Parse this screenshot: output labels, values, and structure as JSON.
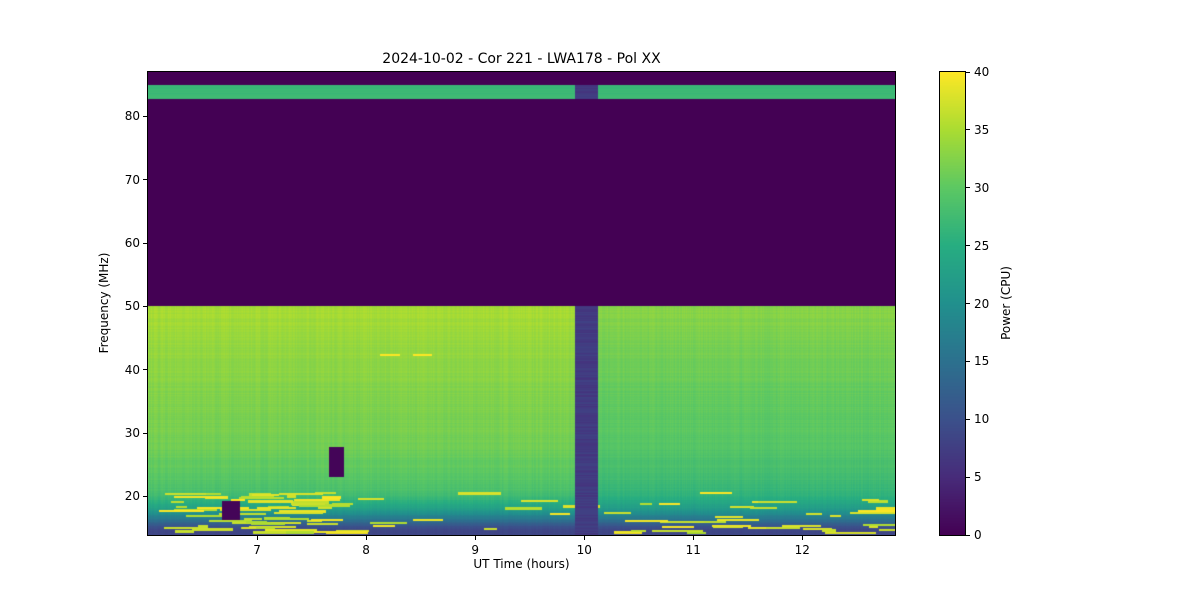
{
  "colors": {
    "background": "#ffffff",
    "text": "#000000"
  },
  "chart_data": {
    "type": "heatmap",
    "title": "2024-10-02 - Cor 221 - LWA178 - Pol XX",
    "xlabel": "UT Time (hours)",
    "ylabel": "Frequency (MHz)",
    "x_range": [
      6.0,
      12.85
    ],
    "y_range": [
      13.9,
      87.0
    ],
    "x_ticks": [
      7,
      8,
      9,
      10,
      11,
      12
    ],
    "y_ticks": [
      20,
      30,
      40,
      50,
      60,
      70,
      80
    ],
    "colorbar": {
      "label": "Power (CPU)",
      "range": [
        0,
        40
      ],
      "ticks": [
        0,
        5,
        10,
        15,
        20,
        25,
        30,
        35,
        40
      ]
    },
    "colormap": "viridis",
    "viridis_stops": [
      [
        0.0,
        "#440154"
      ],
      [
        0.125,
        "#472c7a"
      ],
      [
        0.25,
        "#3b518b"
      ],
      [
        0.375,
        "#2c718e"
      ],
      [
        0.5,
        "#21908d"
      ],
      [
        0.625,
        "#27ad81"
      ],
      [
        0.75,
        "#5cc863"
      ],
      [
        0.875,
        "#aadc32"
      ],
      [
        1.0,
        "#fde725"
      ]
    ],
    "bands": [
      {
        "f_min": 84.9,
        "f_max": 87.0,
        "value": 0
      },
      {
        "f_min": 82.7,
        "f_max": 84.9,
        "value": 27
      },
      {
        "f_min": 50.1,
        "f_max": 82.7,
        "value": 0
      }
    ],
    "low_band_gradient": {
      "f_min": 13.9,
      "f_max": 50.1,
      "stops": [
        [
          50.1,
          33.8
        ],
        [
          46,
          33.2
        ],
        [
          42,
          32.4
        ],
        [
          38,
          31.8
        ],
        [
          34,
          31.2
        ],
        [
          30,
          30.8
        ],
        [
          27,
          30.0
        ],
        [
          24,
          29.0
        ],
        [
          22,
          28.2
        ],
        [
          20.5,
          27.0
        ],
        [
          19.5,
          25.5
        ],
        [
          18.5,
          23.5
        ],
        [
          17.5,
          20.5
        ],
        [
          16.8,
          17.5
        ],
        [
          16.0,
          14.0
        ],
        [
          15.3,
          10.5
        ],
        [
          14.6,
          8.5
        ],
        [
          13.9,
          8.0
        ]
      ]
    },
    "time_shading": {
      "boundary": 10.02,
      "left_delta": 1.0,
      "right_delta": -1.0
    },
    "features": {
      "vertical_stripe": {
        "t_min": 9.92,
        "t_max": 10.13,
        "value": 6
      },
      "dropouts": [
        {
          "t_min": 7.66,
          "t_max": 7.8,
          "f_min": 23.0,
          "f_max": 27.8,
          "value": 0.5
        },
        {
          "t_min": 6.68,
          "t_max": 6.84,
          "f_min": 16.2,
          "f_max": 19.2,
          "value": 0.5
        }
      ],
      "bright_dashes": [
        {
          "t_min": 8.13,
          "t_max": 8.31,
          "f": 42.3,
          "value": 40
        },
        {
          "t_min": 8.43,
          "t_max": 8.6,
          "f": 42.3,
          "value": 40
        }
      ],
      "rfi_noise": {
        "f_min": 14.2,
        "f_max": 20.5,
        "seed": 42,
        "count": 110,
        "value_min": 35,
        "value_max": 40
      }
    }
  }
}
